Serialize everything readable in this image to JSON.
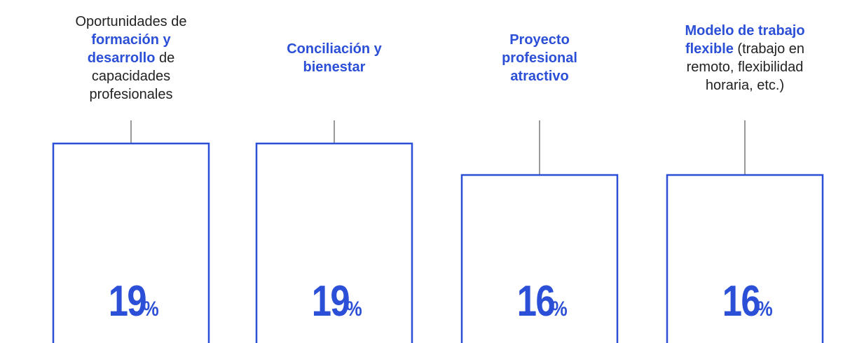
{
  "chart_data": {
    "type": "bar",
    "categories": [
      [
        {
          "text": "Oportunidades de ",
          "emphasis": false
        },
        {
          "text": "formación y desarrollo",
          "emphasis": true
        },
        {
          "text": " de capacidades profesionales",
          "emphasis": false
        }
      ],
      [
        {
          "text": "Conciliación y bienestar",
          "emphasis": true
        }
      ],
      [
        {
          "text": "Proyecto profesional atractivo",
          "emphasis": true
        }
      ],
      [
        {
          "text": "Modelo de trabajo flexible",
          "emphasis": true
        },
        {
          "text": " (trabajo en remoto, flexibilidad horaria, etc.)",
          "emphasis": false
        }
      ]
    ],
    "values": [
      19,
      19,
      16,
      16
    ],
    "unit": "%",
    "color": "#2b4fd6",
    "ylim": [
      0,
      32
    ]
  }
}
